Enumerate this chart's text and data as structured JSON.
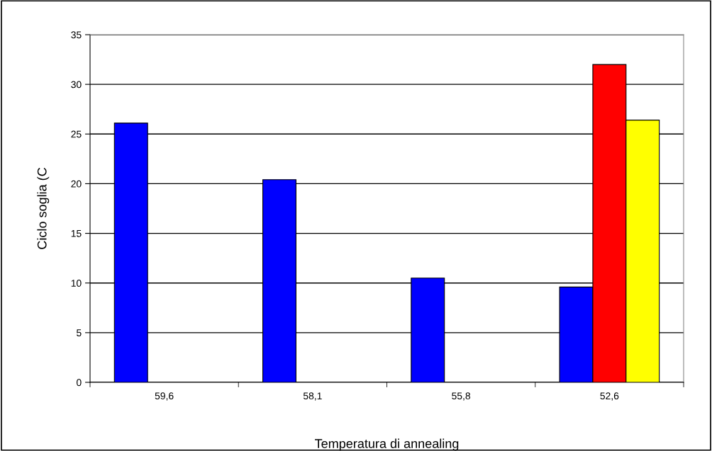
{
  "chart_data": {
    "type": "bar",
    "xlabel": "Temperatura di annealing",
    "ylabel": "Ciclo soglia (C",
    "categories": [
      "59,6",
      "58,1",
      "55,8",
      "52,6"
    ],
    "series": [
      {
        "color": "#0000ff",
        "values": [
          26.1,
          20.4,
          10.5,
          9.6
        ]
      },
      {
        "color": "#ff0000",
        "values": [
          null,
          null,
          null,
          32.0
        ]
      },
      {
        "color": "#ffff00",
        "values": [
          null,
          null,
          null,
          26.4
        ]
      }
    ],
    "ylim": [
      0,
      35
    ],
    "yticks": [
      0,
      5,
      10,
      15,
      20,
      25,
      30,
      35
    ],
    "grid": "y"
  }
}
